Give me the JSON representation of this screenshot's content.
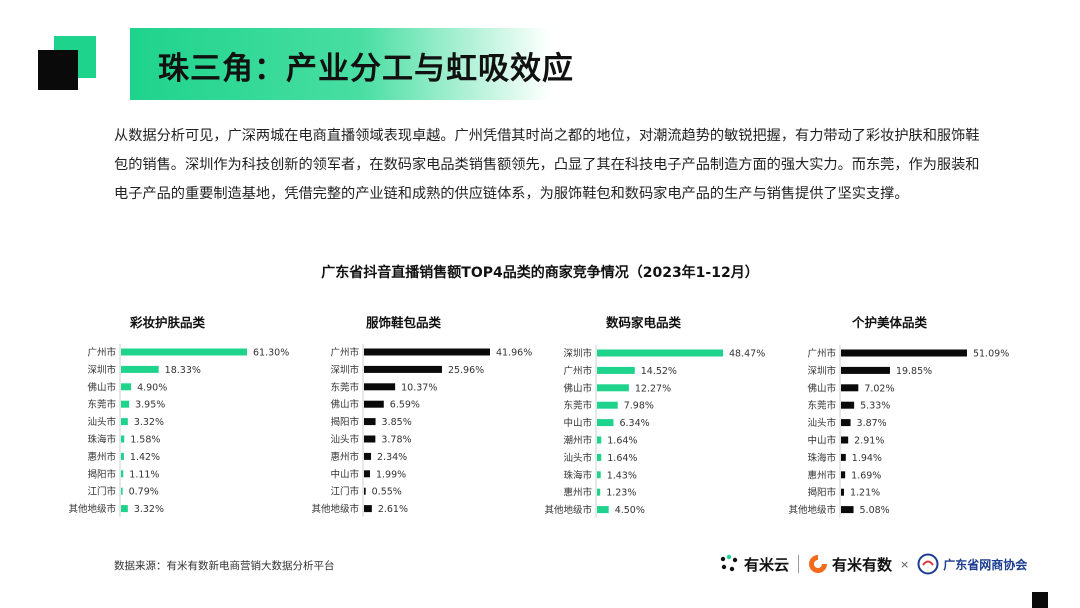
{
  "page": {
    "title": "珠三角：产业分工与虹吸效应",
    "intro": "从数据分析可见，广深两城在电商直播领域表现卓越。广州凭借其时尚之都的地位，对潮流趋势的敏锐把握，有力带动了彩妆护肤和服饰鞋包的销售。深圳作为科技创新的领军者，在数码家电品类销售额领先，凸显了其在科技电子产品制造方面的强大实力。而东莞，作为服装和电子产品的重要制造基地，凭借完整的产业链和成熟的供应链体系，为服饰鞋包和数码家电产品的生产与销售提供了坚实支撑。",
    "chart_heading": "广东省抖音直播销售额TOP4品类的商家竞争情况（2023年1-12月）"
  },
  "footer": {
    "source": "数据来源：有米有数新电商营销大数据分析平台",
    "logo1": "有米云",
    "logo2": "有米有数",
    "x": "×",
    "logo3": "广东省网商协会"
  },
  "colors": {
    "green": "#1ed38c",
    "black": "#0a0a0a"
  },
  "chart_data": [
    {
      "type": "bar",
      "orientation": "horizontal",
      "title": "彩妆护肤品类",
      "color": "#1ed38c",
      "categories": [
        "广州市",
        "深圳市",
        "佛山市",
        "东莞市",
        "汕头市",
        "珠海市",
        "惠州市",
        "揭阳市",
        "江门市",
        "其他地级市"
      ],
      "values": [
        61.3,
        18.33,
        4.9,
        3.95,
        3.32,
        1.58,
        1.42,
        1.11,
        0.79,
        3.32
      ],
      "labels": [
        "61.30%",
        "18.33%",
        "4.90%",
        "3.95%",
        "3.32%",
        "1.58%",
        "1.42%",
        "1.11%",
        "0.79%",
        "3.32%"
      ]
    },
    {
      "type": "bar",
      "orientation": "horizontal",
      "title": "服饰鞋包品类",
      "color": "#0a0a0a",
      "categories": [
        "广州市",
        "深圳市",
        "东莞市",
        "佛山市",
        "揭阳市",
        "汕头市",
        "惠州市",
        "中山市",
        "江门市",
        "其他地级市"
      ],
      "values": [
        41.96,
        25.96,
        10.37,
        6.59,
        3.85,
        3.78,
        2.34,
        1.99,
        0.55,
        2.61
      ],
      "labels": [
        "41.96%",
        "25.96%",
        "10.37%",
        "6.59%",
        "3.85%",
        "3.78%",
        "2.34%",
        "1.99%",
        "0.55%",
        "2.61%"
      ]
    },
    {
      "type": "bar",
      "orientation": "horizontal",
      "title": "数码家电品类",
      "color": "#1ed38c",
      "categories": [
        "深圳市",
        "广州市",
        "佛山市",
        "东莞市",
        "中山市",
        "潮州市",
        "汕头市",
        "珠海市",
        "惠州市",
        "其他地级市"
      ],
      "values": [
        48.47,
        14.52,
        12.27,
        7.98,
        6.34,
        1.64,
        1.64,
        1.43,
        1.23,
        4.5
      ],
      "labels": [
        "48.47%",
        "14.52%",
        "12.27%",
        "7.98%",
        "6.34%",
        "1.64%",
        "1.64%",
        "1.43%",
        "1.23%",
        "4.50%"
      ]
    },
    {
      "type": "bar",
      "orientation": "horizontal",
      "title": "个护美体品类",
      "color": "#0a0a0a",
      "categories": [
        "广州市",
        "深圳市",
        "佛山市",
        "东莞市",
        "汕头市",
        "中山市",
        "珠海市",
        "惠州市",
        "揭阳市",
        "其他地级市"
      ],
      "values": [
        51.09,
        19.85,
        7.02,
        5.33,
        3.87,
        2.91,
        1.94,
        1.69,
        1.21,
        5.08
      ],
      "labels": [
        "51.09%",
        "19.85%",
        "7.02%",
        "5.33%",
        "3.87%",
        "2.91%",
        "1.94%",
        "1.69%",
        "1.21%",
        "5.08%"
      ]
    }
  ]
}
